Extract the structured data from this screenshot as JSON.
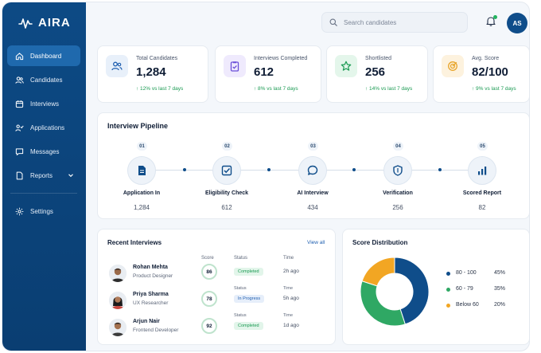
{
  "app": {
    "name": "AIRA"
  },
  "sidebar": {
    "items": [
      {
        "label": "Dashboard",
        "icon": "home-icon",
        "active": true
      },
      {
        "label": "Candidates",
        "icon": "users-icon"
      },
      {
        "label": "Interviews",
        "icon": "calendar-icon"
      },
      {
        "label": "Applications",
        "icon": "applications-icon"
      },
      {
        "label": "Messages",
        "icon": "message-icon"
      },
      {
        "label": "Reports",
        "icon": "report-icon"
      },
      {
        "label": "Settings",
        "icon": "gear-icon"
      }
    ]
  },
  "header": {
    "search_placeholder": "Search candidates",
    "avatar_initials": "AS"
  },
  "stats": [
    {
      "label": "Total Candidates",
      "value": "1,284",
      "trend": "↑ 12% vs last 7 days",
      "icon": "users-icon",
      "color": "#1f5fb0"
    },
    {
      "label": "Interviews Completed",
      "value": "612",
      "trend": "↑ 8% vs last 7 days",
      "icon": "clipboard-check-icon",
      "color": "#6b4fd8"
    },
    {
      "label": "Shortlisted",
      "value": "256",
      "trend": "↑ 14% vs last 7 days",
      "icon": "star-icon",
      "color": "#1a9a52"
    },
    {
      "label": "Avg. Score",
      "value": "82/100",
      "trend": "↑ 9% vs last 7 days",
      "icon": "target-icon",
      "color": "#e8a52b"
    }
  ],
  "pipeline": {
    "title": "Interview Pipeline",
    "steps": [
      {
        "num": "01",
        "name": "Application In",
        "count": "1,284",
        "icon": "document-icon"
      },
      {
        "num": "02",
        "name": "Eligibility Check",
        "count": "612",
        "icon": "checkbox-icon"
      },
      {
        "num": "03",
        "name": "AI Interview",
        "count": "434",
        "icon": "chat-icon"
      },
      {
        "num": "04",
        "name": "Verification",
        "count": "256",
        "icon": "shield-icon"
      },
      {
        "num": "05",
        "name": "Scored Report",
        "count": "82",
        "icon": "bar-chart-icon"
      }
    ]
  },
  "recent": {
    "title": "Recent Interviews",
    "view_all": "View all",
    "headers": {
      "score": "Score",
      "status": "Status",
      "time": "Time"
    },
    "rows": [
      {
        "name": "Rohan Mehta",
        "role": "Product Designer",
        "score": "86",
        "status": "Completed",
        "time": "2h ago"
      },
      {
        "name": "Priya Sharma",
        "role": "UX Researcher",
        "score": "78",
        "status": "In Progress",
        "time": "5h ago"
      },
      {
        "name": "Arjun Nair",
        "role": "Frontend Developer",
        "score": "92",
        "status": "Completed",
        "time": "1d ago"
      }
    ]
  },
  "chart_data": {
    "type": "pie",
    "title": "Score Distribution",
    "categories": [
      "80 - 100",
      "60 - 79",
      "Below 60"
    ],
    "values": [
      45,
      35,
      20
    ],
    "labels": [
      "45%",
      "35%",
      "20%"
    ],
    "colors": [
      "#0f4d8a",
      "#2fa864",
      "#f2a623"
    ]
  }
}
